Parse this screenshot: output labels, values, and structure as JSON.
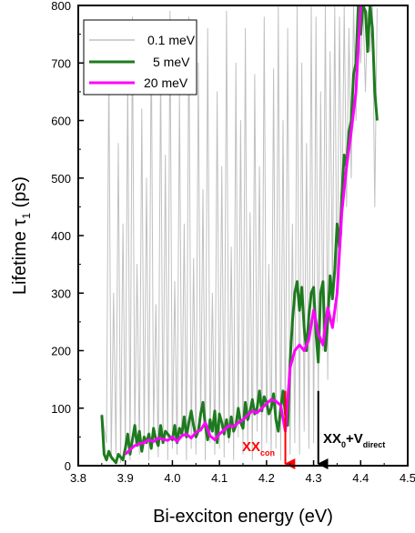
{
  "chart_data": {
    "type": "line",
    "xlabel": "Bi-exciton energy (eV)",
    "ylabel_main": "Lifetime τ",
    "ylabel_sub": "1",
    "ylabel_unit": " (ps)",
    "xlim": [
      3.8,
      4.5
    ],
    "ylim": [
      0,
      800
    ],
    "x_ticks": [
      3.8,
      3.9,
      4.0,
      4.1,
      4.2,
      4.3,
      4.4,
      4.5
    ],
    "x_tick_labels": [
      "3.8",
      "3.9",
      "4.0",
      "4.1",
      "4.2",
      "4.3",
      "4.4",
      "4.5"
    ],
    "y_ticks": [
      0,
      100,
      200,
      300,
      400,
      500,
      600,
      700,
      800
    ],
    "y_tick_labels": [
      "0",
      "100",
      "200",
      "300",
      "400",
      "500",
      "600",
      "700",
      "800"
    ],
    "legend_position": "top-left",
    "series": [
      {
        "name": "0.1 meV",
        "color": "#c0c0c0",
        "x": [
          3.85,
          3.86,
          3.865,
          3.87,
          3.875,
          3.88,
          3.885,
          3.89,
          3.895,
          3.9,
          3.905,
          3.91,
          3.915,
          3.92,
          3.925,
          3.93,
          3.935,
          3.94,
          3.945,
          3.95,
          3.955,
          3.96,
          3.965,
          3.97,
          3.975,
          3.98,
          3.985,
          3.99,
          3.995,
          4.0,
          4.005,
          4.01,
          4.015,
          4.02,
          4.025,
          4.03,
          4.035,
          4.04,
          4.045,
          4.05,
          4.055,
          4.06,
          4.065,
          4.07,
          4.075,
          4.08,
          4.085,
          4.09,
          4.095,
          4.1,
          4.105,
          4.11,
          4.115,
          4.12,
          4.125,
          4.13,
          4.135,
          4.14,
          4.145,
          4.15,
          4.155,
          4.16,
          4.165,
          4.17,
          4.175,
          4.18,
          4.185,
          4.19,
          4.195,
          4.2,
          4.205,
          4.21,
          4.215,
          4.22,
          4.225,
          4.23,
          4.235,
          4.24,
          4.245,
          4.25,
          4.255,
          4.26,
          4.265,
          4.27,
          4.275,
          4.28,
          4.285,
          4.29,
          4.295,
          4.3,
          4.305,
          4.31,
          4.315,
          4.32,
          4.325,
          4.33,
          4.335,
          4.34,
          4.345,
          4.35,
          4.355,
          4.36,
          4.365,
          4.37,
          4.375,
          4.38,
          4.385,
          4.39,
          4.395,
          4.4,
          4.405,
          4.41,
          4.415,
          4.42,
          4.425,
          4.43,
          4.435
        ],
        "y": [
          90,
          40,
          700,
          10,
          300,
          20,
          560,
          5,
          420,
          30,
          680,
          10,
          780,
          50,
          350,
          20,
          620,
          40,
          500,
          10,
          760,
          60,
          280,
          15,
          700,
          40,
          540,
          10,
          790,
          30,
          320,
          20,
          650,
          50,
          420,
          10,
          780,
          30,
          360,
          20,
          700,
          60,
          480,
          10,
          760,
          40,
          300,
          20,
          650,
          30,
          520,
          15,
          790,
          40,
          380,
          10,
          700,
          50,
          600,
          20,
          760,
          30,
          440,
          10,
          680,
          60,
          520,
          20,
          780,
          40,
          350,
          15,
          690,
          30,
          800,
          10,
          600,
          50,
          760,
          20,
          420,
          40,
          800,
          20,
          700,
          60,
          560,
          30,
          800,
          40,
          780,
          100,
          650,
          200,
          800,
          150,
          720,
          300,
          800,
          250,
          780,
          400,
          800,
          450,
          760,
          500,
          800,
          600,
          780,
          700,
          800,
          650,
          790,
          720,
          800,
          450,
          795
        ],
        "width": 1
      },
      {
        "name": "5 meV",
        "color": "#1e7a1e",
        "x": [
          3.85,
          3.855,
          3.86,
          3.865,
          3.87,
          3.875,
          3.88,
          3.885,
          3.89,
          3.895,
          3.9,
          3.905,
          3.91,
          3.915,
          3.92,
          3.925,
          3.93,
          3.935,
          3.94,
          3.945,
          3.95,
          3.955,
          3.96,
          3.965,
          3.97,
          3.975,
          3.98,
          3.985,
          3.99,
          3.995,
          4.0,
          4.005,
          4.01,
          4.015,
          4.02,
          4.025,
          4.03,
          4.035,
          4.04,
          4.045,
          4.05,
          4.055,
          4.06,
          4.065,
          4.07,
          4.075,
          4.08,
          4.085,
          4.09,
          4.095,
          4.1,
          4.105,
          4.11,
          4.115,
          4.12,
          4.125,
          4.13,
          4.135,
          4.14,
          4.145,
          4.15,
          4.155,
          4.16,
          4.165,
          4.17,
          4.175,
          4.18,
          4.185,
          4.19,
          4.195,
          4.2,
          4.205,
          4.21,
          4.215,
          4.22,
          4.225,
          4.23,
          4.235,
          4.24,
          4.245,
          4.25,
          4.255,
          4.26,
          4.265,
          4.27,
          4.275,
          4.28,
          4.285,
          4.29,
          4.295,
          4.3,
          4.305,
          4.31,
          4.315,
          4.32,
          4.325,
          4.33,
          4.335,
          4.34,
          4.345,
          4.35,
          4.355,
          4.36,
          4.365,
          4.37,
          4.375,
          4.38,
          4.385,
          4.39,
          4.395,
          4.4,
          4.405,
          4.41,
          4.415,
          4.42,
          4.425,
          4.43,
          4.435
        ],
        "y": [
          88,
          20,
          10,
          25,
          15,
          10,
          5,
          20,
          15,
          10,
          30,
          55,
          20,
          45,
          70,
          35,
          60,
          25,
          50,
          40,
          55,
          30,
          65,
          45,
          35,
          70,
          40,
          60,
          55,
          50,
          45,
          70,
          40,
          65,
          55,
          85,
          50,
          75,
          95,
          70,
          50,
          60,
          90,
          110,
          70,
          45,
          80,
          60,
          95,
          40,
          90,
          75,
          55,
          80,
          50,
          85,
          60,
          70,
          100,
          75,
          65,
          110,
          80,
          95,
          115,
          90,
          100,
          130,
          95,
          120,
          110,
          90,
          100,
          125,
          80,
          60,
          100,
          130,
          90,
          70,
          180,
          250,
          300,
          320,
          270,
          310,
          240,
          200,
          260,
          300,
          310,
          230,
          180,
          300,
          320,
          200,
          250,
          330,
          290,
          340,
          420,
          380,
          470,
          540,
          520,
          580,
          600,
          680,
          700,
          800,
          750,
          800,
          790,
          720,
          800,
          760,
          650,
          600
        ],
        "width": 3
      },
      {
        "name": "20 meV",
        "color": "#ff00ff",
        "x": [
          3.9,
          3.91,
          3.92,
          3.93,
          3.94,
          3.95,
          3.96,
          3.97,
          3.98,
          3.99,
          4.0,
          4.01,
          4.02,
          4.03,
          4.04,
          4.05,
          4.06,
          4.07,
          4.08,
          4.09,
          4.1,
          4.11,
          4.12,
          4.13,
          4.14,
          4.15,
          4.16,
          4.17,
          4.18,
          4.19,
          4.2,
          4.21,
          4.22,
          4.23,
          4.24,
          4.25,
          4.26,
          4.27,
          4.28,
          4.29,
          4.3,
          4.31,
          4.32,
          4.33,
          4.34,
          4.35,
          4.36,
          4.37,
          4.38,
          4.39,
          4.4
        ],
        "y": [
          20,
          28,
          35,
          38,
          40,
          45,
          42,
          48,
          46,
          44,
          50,
          42,
          52,
          55,
          48,
          58,
          62,
          75,
          52,
          45,
          55,
          62,
          70,
          68,
          75,
          80,
          88,
          95,
          92,
          100,
          108,
          115,
          112,
          105,
          60,
          170,
          200,
          210,
          200,
          220,
          270,
          230,
          210,
          275,
          240,
          300,
          440,
          520,
          580,
          650,
          800
        ],
        "width": 3
      }
    ],
    "annotations": [
      {
        "id": "xx-con",
        "main": "XX",
        "sub": "con",
        "color": "#ff0000",
        "arrow_x": 4.24,
        "arrow_y_from": 130,
        "arrow_y_to": 0
      },
      {
        "id": "xx0-vdirect",
        "main": "XX",
        "sub0": "0",
        "plus": "+V",
        "sub1": "direct",
        "color": "#000000",
        "arrow_x": 4.31,
        "arrow_y_from": 130,
        "arrow_y_to": 0
      }
    ]
  }
}
